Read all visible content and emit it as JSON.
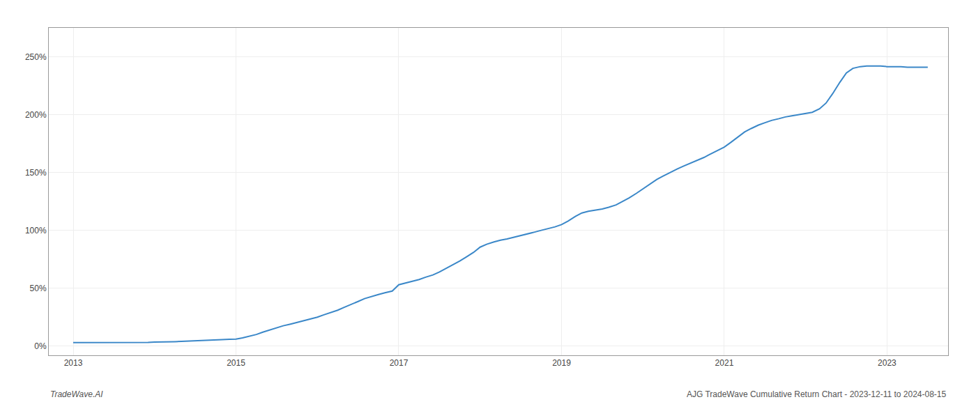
{
  "chart_data": {
    "type": "line",
    "x": [
      2013.0,
      2013.08,
      2013.17,
      2013.25,
      2013.33,
      2013.42,
      2013.5,
      2013.58,
      2013.67,
      2013.75,
      2013.83,
      2013.92,
      2014.0,
      2014.08,
      2014.17,
      2014.25,
      2014.33,
      2014.42,
      2014.5,
      2014.58,
      2014.67,
      2014.75,
      2014.83,
      2014.92,
      2015.0,
      2015.08,
      2015.17,
      2015.25,
      2015.33,
      2015.42,
      2015.5,
      2015.58,
      2015.67,
      2015.75,
      2015.83,
      2015.92,
      2016.0,
      2016.08,
      2016.17,
      2016.25,
      2016.33,
      2016.42,
      2016.5,
      2016.58,
      2016.67,
      2016.75,
      2016.83,
      2016.92,
      2017.0,
      2017.08,
      2017.17,
      2017.25,
      2017.33,
      2017.42,
      2017.5,
      2017.58,
      2017.67,
      2017.75,
      2017.83,
      2017.92,
      2018.0,
      2018.08,
      2018.17,
      2018.25,
      2018.33,
      2018.42,
      2018.5,
      2018.58,
      2018.67,
      2018.75,
      2018.83,
      2018.92,
      2019.0,
      2019.08,
      2019.17,
      2019.25,
      2019.33,
      2019.42,
      2019.5,
      2019.58,
      2019.67,
      2019.75,
      2019.83,
      2019.92,
      2020.0,
      2020.08,
      2020.17,
      2020.25,
      2020.33,
      2020.42,
      2020.5,
      2020.58,
      2020.67,
      2020.75,
      2020.83,
      2020.92,
      2021.0,
      2021.08,
      2021.17,
      2021.25,
      2021.33,
      2021.42,
      2021.5,
      2021.58,
      2021.67,
      2021.75,
      2021.83,
      2021.92,
      2022.0,
      2022.08,
      2022.17,
      2022.25,
      2022.33,
      2022.42,
      2022.5,
      2022.58,
      2022.67,
      2022.75,
      2022.83,
      2022.92,
      2023.0,
      2023.08,
      2023.17,
      2023.25,
      2023.33,
      2023.42,
      2023.5
    ],
    "values": [
      3.0,
      3.0,
      3.0,
      3.0,
      3.0,
      3.0,
      3.0,
      3.0,
      3.0,
      3.0,
      3.0,
      3.2,
      3.5,
      3.5,
      3.5,
      3.8,
      4.0,
      4.2,
      4.5,
      4.8,
      5.0,
      5.2,
      5.5,
      5.8,
      6.0,
      7.0,
      8.5,
      10.0,
      12.0,
      14.0,
      16.0,
      17.5,
      19.0,
      20.5,
      22.0,
      23.5,
      25.0,
      27.0,
      29.0,
      31.0,
      33.5,
      36.0,
      38.5,
      41.0,
      43.0,
      44.5,
      46.0,
      47.5,
      53.0,
      54.5,
      56.0,
      57.5,
      59.5,
      61.5,
      64.0,
      67.0,
      70.0,
      73.5,
      77.0,
      81.0,
      85.5,
      88.0,
      90.0,
      91.5,
      92.5,
      94.0,
      95.5,
      97.0,
      98.5,
      100.0,
      101.5,
      103.0,
      105.0,
      108.0,
      112.0,
      115.0,
      116.5,
      117.5,
      118.5,
      120.0,
      122.0,
      125.0,
      128.0,
      132.0,
      136.0,
      140.0,
      144.0,
      147.0,
      150.0,
      153.0,
      155.5,
      158.0,
      160.5,
      163.0,
      166.0,
      169.0,
      172.0,
      176.0,
      180.5,
      185.0,
      188.0,
      191.0,
      193.0,
      195.0,
      196.5,
      198.0,
      199.0,
      200.0,
      201.0,
      202.0,
      205.0,
      210.0,
      218.0,
      228.0,
      236.0,
      240.0,
      241.5,
      242.0,
      242.0,
      242.0,
      241.5,
      241.5,
      241.5,
      241.0,
      241.0,
      241.0,
      241.0
    ],
    "color": "#3a87c8",
    "xlim": [
      2012.7,
      2023.75
    ],
    "ylim": [
      -8,
      275
    ],
    "xticks": [
      2013,
      2015,
      2017,
      2019,
      2021,
      2023
    ],
    "yticks": [
      {
        "value": 0,
        "label": "0%"
      },
      {
        "value": 50,
        "label": "50%"
      },
      {
        "value": 100,
        "label": "100%"
      },
      {
        "value": 150,
        "label": "150%"
      },
      {
        "value": 200,
        "label": "200%"
      },
      {
        "value": 250,
        "label": "250%"
      }
    ],
    "grid": true,
    "annotations": [
      "TradeWave.AI",
      "AJG TradeWave Cumulative Return Chart - 2023-12-11 to 2024-08-15"
    ]
  }
}
